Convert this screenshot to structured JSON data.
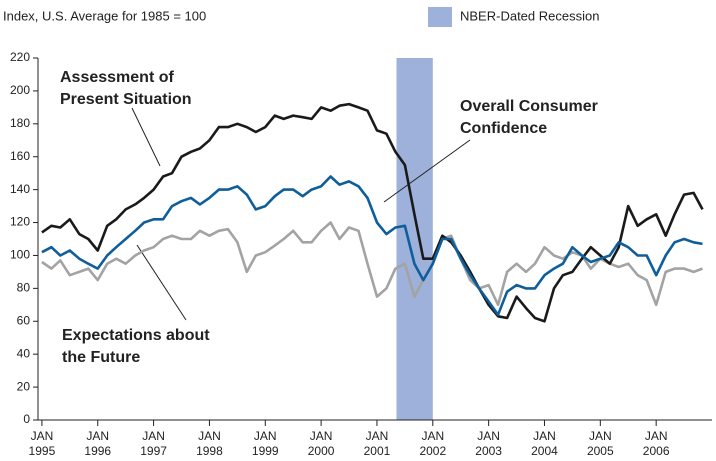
{
  "chart_data": {
    "type": "line",
    "y_label": "Index, U.S. Average for 1985 = 100",
    "recession_label": "NBER-Dated Recession",
    "recession": [
      2001.35,
      2002.0
    ],
    "recession_color": "#9db1da",
    "xtick_month": "JAN",
    "x": [
      1995,
      1995.17,
      1995.33,
      1995.5,
      1995.67,
      1995.83,
      1996,
      1996.17,
      1996.33,
      1996.5,
      1996.67,
      1996.83,
      1997,
      1997.17,
      1997.33,
      1997.5,
      1997.67,
      1997.83,
      1998,
      1998.17,
      1998.33,
      1998.5,
      1998.67,
      1998.83,
      1999,
      1999.17,
      1999.33,
      1999.5,
      1999.67,
      1999.83,
      2000,
      2000.17,
      2000.33,
      2000.5,
      2000.67,
      2000.83,
      2001,
      2001.17,
      2001.33,
      2001.5,
      2001.67,
      2001.83,
      2002,
      2002.17,
      2002.33,
      2002.5,
      2002.67,
      2002.83,
      2003,
      2003.17,
      2003.33,
      2003.5,
      2003.67,
      2003.83,
      2004,
      2004.17,
      2004.33,
      2004.5,
      2004.67,
      2004.83,
      2005,
      2005.17,
      2005.33,
      2005.5,
      2005.67,
      2005.83,
      2006,
      2006.17,
      2006.33,
      2006.5,
      2006.67,
      2006.83
    ],
    "series": [
      {
        "name": "Assessment of Present Situation",
        "color": "#1a1a1a",
        "values": [
          114,
          118,
          117,
          122,
          113,
          110,
          103,
          118,
          122,
          128,
          131,
          135,
          140,
          148,
          150,
          160,
          163,
          165,
          170,
          178,
          178,
          180,
          178,
          175,
          178,
          185,
          183,
          185,
          184,
          183,
          190,
          188,
          191,
          192,
          190,
          188,
          176,
          174,
          163,
          155,
          125,
          98,
          98,
          112,
          108,
          100,
          90,
          80,
          70,
          63,
          62,
          75,
          68,
          62,
          60,
          80,
          88,
          90,
          98,
          105,
          100,
          95,
          105,
          130,
          118,
          122,
          125,
          112,
          125,
          137,
          138,
          128
        ]
      },
      {
        "name": "Overall Consumer Confidence",
        "color": "#0f5e9c",
        "values": [
          102,
          105,
          100,
          103,
          98,
          95,
          92,
          100,
          105,
          110,
          115,
          120,
          122,
          122,
          130,
          133,
          135,
          131,
          135,
          140,
          140,
          142,
          137,
          128,
          130,
          136,
          140,
          140,
          136,
          140,
          142,
          148,
          143,
          145,
          142,
          135,
          120,
          113,
          117,
          118,
          95,
          85,
          95,
          110,
          110,
          98,
          88,
          80,
          72,
          64,
          78,
          82,
          80,
          80,
          88,
          92,
          95,
          105,
          100,
          96,
          98,
          100,
          108,
          105,
          100,
          100,
          88,
          100,
          108,
          110,
          108,
          107
        ]
      },
      {
        "name": "Expectations about the Future",
        "color": "#a3a3a3",
        "values": [
          96,
          92,
          97,
          88,
          90,
          92,
          85,
          95,
          98,
          95,
          100,
          103,
          105,
          110,
          112,
          110,
          110,
          115,
          112,
          115,
          116,
          108,
          90,
          100,
          102,
          106,
          110,
          115,
          108,
          108,
          115,
          120,
          110,
          117,
          115,
          95,
          75,
          80,
          92,
          95,
          75,
          85,
          95,
          110,
          112,
          98,
          85,
          80,
          82,
          70,
          90,
          95,
          90,
          95,
          105,
          100,
          98,
          102,
          100,
          92,
          98,
          95,
          93,
          95,
          88,
          85,
          70,
          90,
          92,
          92,
          90,
          92
        ]
      }
    ],
    "annotations": [
      {
        "lines": [
          "Assessment of",
          "Present Situation"
        ]
      },
      {
        "lines": [
          "Overall Consumer",
          "Confidence"
        ]
      },
      {
        "lines": [
          "Expectations about",
          "the Future"
        ]
      }
    ],
    "xlim": [
      1994.93,
      2007.0
    ],
    "xticks": [
      {
        "value": 1995,
        "label": "1995"
      },
      {
        "value": 1996,
        "label": "1996"
      },
      {
        "value": 1997,
        "label": "1997"
      },
      {
        "value": 1998,
        "label": "1998"
      },
      {
        "value": 1999,
        "label": "1999"
      },
      {
        "value": 2000,
        "label": "2000"
      },
      {
        "value": 2001,
        "label": "2001"
      },
      {
        "value": 2002,
        "label": "2002"
      },
      {
        "value": 2003,
        "label": "2003"
      },
      {
        "value": 2004,
        "label": "2004"
      },
      {
        "value": 2005,
        "label": "2005"
      },
      {
        "value": 2006,
        "label": "2006"
      }
    ],
    "ylim": [
      0,
      220
    ],
    "yticks": [
      0,
      20,
      40,
      60,
      80,
      100,
      120,
      140,
      160,
      180,
      200,
      220
    ],
    "grid": false
  }
}
